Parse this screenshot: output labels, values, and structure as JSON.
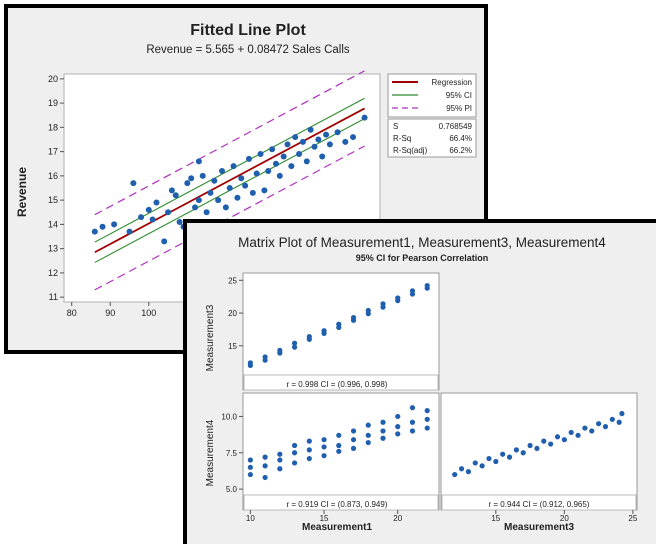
{
  "fitted": {
    "title": "Fitted Line Plot",
    "subtitle": "Revenue = 5.565 + 0.08472 Sales Calls",
    "ylabel": "Revenue",
    "xticks": [
      "80",
      "90",
      "100"
    ],
    "yticks": [
      "11",
      "12",
      "13",
      "14",
      "15",
      "16",
      "17",
      "18",
      "19",
      "20"
    ],
    "legend": [
      "Regression",
      "95% CI",
      "95% PI"
    ],
    "stats": [
      {
        "label": "S",
        "value": "0.768549"
      },
      {
        "label": "R-Sq",
        "value": "66.4%"
      },
      {
        "label": "R-Sq(adj)",
        "value": "66.2%"
      }
    ],
    "colors": {
      "regression": "#a00000",
      "ci": "#2e8b2e",
      "pi": "#b030c0",
      "points": "#1f5fad"
    }
  },
  "matrix": {
    "title": "Matrix Plot of Measurement1, Measurement3, Measurement4",
    "subtitle": "95% CI for Pearson Correlation",
    "ylabels": [
      "Measurement3",
      "Measurement4"
    ],
    "xlabels": [
      "Measurement1",
      "Measurement3"
    ],
    "m3_ticks": [
      "15",
      "20",
      "25"
    ],
    "m4_ticks": [
      "5.0",
      "7.5",
      "10.0"
    ],
    "m1_ticks": [
      "10",
      "15",
      "20"
    ],
    "m3x_ticks": [
      "15",
      "20",
      "25"
    ],
    "r_labels": [
      "r = 0.998  CI = (0.996, 0.998)",
      "r = 0.919  CI = (0.873, 0.949)",
      "r = 0.944  CI = (0.912, 0.965)"
    ]
  },
  "chart_data": [
    {
      "type": "scatter",
      "title": "Fitted Line Plot",
      "subtitle": "Revenue = 5.565 + 0.08472 Sales Calls",
      "xlabel": "",
      "ylabel": "Revenue",
      "xlim": [
        78,
        160
      ],
      "ylim": [
        10.8,
        20.2
      ],
      "fit": {
        "intercept": 5.565,
        "slope": 0.08472,
        "s": 0.768549,
        "r_sq": "66.4%",
        "r_sq_adj": "66.2%"
      },
      "points": [
        [
          86,
          13.7
        ],
        [
          88,
          13.9
        ],
        [
          91,
          14.0
        ],
        [
          95,
          13.7
        ],
        [
          96,
          15.7
        ],
        [
          98,
          14.3
        ],
        [
          100,
          14.6
        ],
        [
          101,
          14.2
        ],
        [
          102,
          14.9
        ],
        [
          104,
          13.3
        ],
        [
          105,
          14.5
        ],
        [
          106,
          15.4
        ],
        [
          107,
          15.2
        ],
        [
          108,
          14.1
        ],
        [
          109,
          13.9
        ],
        [
          110,
          15.7
        ],
        [
          111,
          15.9
        ],
        [
          112,
          14.7
        ],
        [
          113,
          15.0
        ],
        [
          113,
          16.6
        ],
        [
          114,
          16.0
        ],
        [
          115,
          14.5
        ],
        [
          116,
          15.3
        ],
        [
          117,
          15.8
        ],
        [
          118,
          15.0
        ],
        [
          119,
          16.2
        ],
        [
          120,
          14.7
        ],
        [
          121,
          15.5
        ],
        [
          122,
          16.4
        ],
        [
          123,
          15.1
        ],
        [
          124,
          15.9
        ],
        [
          125,
          15.6
        ],
        [
          126,
          16.7
        ],
        [
          127,
          15.3
        ],
        [
          128,
          16.1
        ],
        [
          129,
          16.9
        ],
        [
          130,
          15.4
        ],
        [
          131,
          16.2
        ],
        [
          132,
          17.1
        ],
        [
          133,
          16.5
        ],
        [
          134,
          16.0
        ],
        [
          135,
          16.8
        ],
        [
          136,
          17.3
        ],
        [
          137,
          16.4
        ],
        [
          138,
          17.6
        ],
        [
          139,
          16.9
        ],
        [
          140,
          17.4
        ],
        [
          141,
          16.6
        ],
        [
          142,
          17.9
        ],
        [
          143,
          17.2
        ],
        [
          144,
          17.5
        ],
        [
          145,
          16.8
        ],
        [
          146,
          17.7
        ],
        [
          147,
          17.3
        ],
        [
          149,
          17.8
        ],
        [
          151,
          17.4
        ],
        [
          153,
          17.6
        ],
        [
          156,
          18.4
        ]
      ]
    },
    {
      "type": "scatter",
      "title": "Matrix Plot of Measurement1, Measurement3, Measurement4",
      "subtitle": "95% CI for Pearson Correlation",
      "panels": [
        {
          "x": "Measurement1",
          "y": "Measurement3",
          "r": 0.998,
          "ci": [
            0.996,
            0.998
          ],
          "points": [
            [
              10,
              12.0
            ],
            [
              10,
              12.4
            ],
            [
              11,
              12.8
            ],
            [
              11,
              13.3
            ],
            [
              12,
              13.9
            ],
            [
              12,
              14.3
            ],
            [
              13,
              14.8
            ],
            [
              13,
              15.4
            ],
            [
              14,
              16.0
            ],
            [
              14,
              16.4
            ],
            [
              15,
              16.9
            ],
            [
              15,
              17.3
            ],
            [
              16,
              17.8
            ],
            [
              16,
              18.3
            ],
            [
              17,
              18.9
            ],
            [
              17,
              19.3
            ],
            [
              18,
              19.9
            ],
            [
              18,
              20.4
            ],
            [
              19,
              20.9
            ],
            [
              19,
              21.4
            ],
            [
              20,
              21.9
            ],
            [
              20,
              22.3
            ],
            [
              21,
              22.9
            ],
            [
              21,
              23.4
            ],
            [
              22,
              23.8
            ],
            [
              22,
              24.2
            ]
          ]
        },
        {
          "x": "Measurement1",
          "y": "Measurement4",
          "r": 0.919,
          "ci": [
            0.873,
            0.949
          ],
          "points": [
            [
              10,
              6.0
            ],
            [
              10,
              6.5
            ],
            [
              10,
              7.0
            ],
            [
              11,
              5.8
            ],
            [
              11,
              6.6
            ],
            [
              11,
              7.2
            ],
            [
              12,
              6.4
            ],
            [
              12,
              7.0
            ],
            [
              12,
              7.4
            ],
            [
              13,
              6.8
            ],
            [
              13,
              7.5
            ],
            [
              13,
              8.0
            ],
            [
              14,
              7.1
            ],
            [
              14,
              7.7
            ],
            [
              14,
              8.3
            ],
            [
              15,
              7.3
            ],
            [
              15,
              7.9
            ],
            [
              15,
              8.4
            ],
            [
              16,
              7.6
            ],
            [
              16,
              8.0
            ],
            [
              16,
              8.7
            ],
            [
              17,
              7.8
            ],
            [
              17,
              8.4
            ],
            [
              17,
              9.0
            ],
            [
              18,
              8.2
            ],
            [
              18,
              8.7
            ],
            [
              18,
              9.4
            ],
            [
              19,
              8.5
            ],
            [
              19,
              9.0
            ],
            [
              19,
              9.6
            ],
            [
              20,
              8.8
            ],
            [
              20,
              9.3
            ],
            [
              20,
              10.0
            ],
            [
              21,
              9.0
            ],
            [
              21,
              9.6
            ],
            [
              21,
              10.6
            ],
            [
              22,
              9.2
            ],
            [
              22,
              9.8
            ],
            [
              22,
              10.4
            ]
          ]
        },
        {
          "x": "Measurement3",
          "y": "Measurement4",
          "r": 0.944,
          "ci": [
            0.912,
            0.965
          ],
          "points": [
            [
              12,
              6.0
            ],
            [
              12.5,
              6.4
            ],
            [
              13,
              6.2
            ],
            [
              13.5,
              6.8
            ],
            [
              14,
              6.6
            ],
            [
              14.5,
              7.1
            ],
            [
              15,
              6.9
            ],
            [
              15.5,
              7.4
            ],
            [
              16,
              7.2
            ],
            [
              16.5,
              7.7
            ],
            [
              17,
              7.5
            ],
            [
              17.5,
              8.0
            ],
            [
              18,
              7.8
            ],
            [
              18.5,
              8.3
            ],
            [
              19,
              8.1
            ],
            [
              19.5,
              8.6
            ],
            [
              20,
              8.4
            ],
            [
              20.5,
              8.9
            ],
            [
              21,
              8.7
            ],
            [
              21.5,
              9.2
            ],
            [
              22,
              9.0
            ],
            [
              22.5,
              9.5
            ],
            [
              23,
              9.3
            ],
            [
              23.5,
              9.8
            ],
            [
              24,
              9.6
            ],
            [
              24.2,
              10.2
            ]
          ]
        }
      ]
    }
  ]
}
